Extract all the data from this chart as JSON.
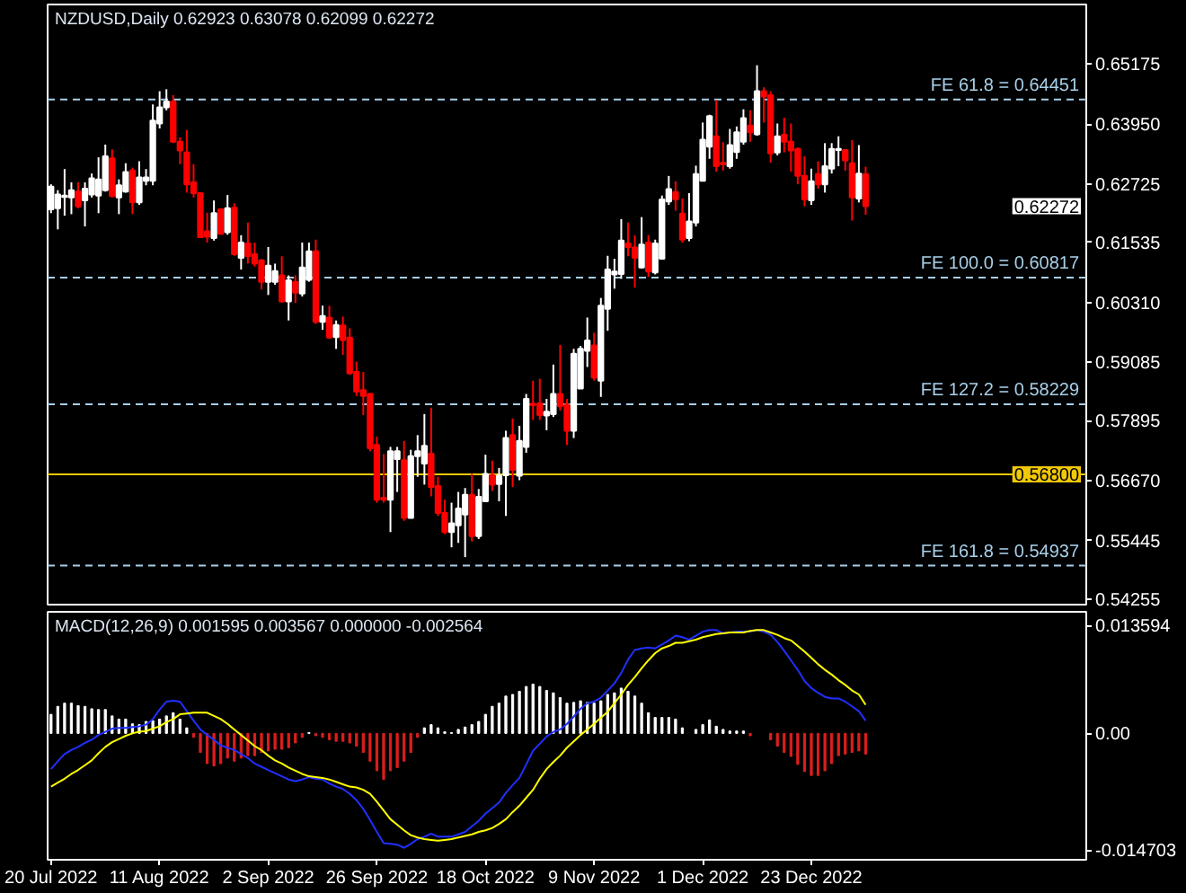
{
  "chart_data": [
    {
      "type": "candlestick",
      "title": "NZDUSD,Daily 0.62923 0.63078 0.62099 0.62272",
      "tick_labels": "y",
      "categories": [
        null,
        null,
        null,
        null,
        null,
        null,
        null,
        null,
        null,
        null,
        null,
        null,
        null,
        null,
        null,
        null,
        null,
        null,
        null,
        null,
        null,
        null,
        null,
        null,
        null,
        null,
        null,
        null,
        null,
        null,
        null,
        null,
        null,
        null,
        null,
        null,
        null,
        null,
        null,
        null,
        null,
        null,
        null,
        null,
        null,
        null,
        null,
        null,
        null,
        null,
        null,
        null,
        null,
        null,
        null,
        null,
        null,
        null,
        null,
        null,
        null,
        null,
        null,
        null,
        null,
        null,
        null,
        null,
        null,
        null,
        null,
        null,
        null,
        null,
        null,
        null,
        null,
        null,
        null,
        null,
        null,
        null,
        null,
        null,
        null,
        null,
        null,
        null,
        null,
        null,
        null,
        null,
        null,
        null,
        null,
        null,
        null,
        null,
        null,
        null,
        null,
        null,
        null,
        null,
        null,
        null,
        null,
        null,
        null,
        null,
        null,
        null,
        null,
        null,
        null,
        null,
        null,
        null,
        null,
        null,
        null,
        null,
        null,
        null,
        null,
        null,
        null,
        null,
        null,
        null,
        null,
        null,
        null,
        null,
        null,
        null,
        null,
        null,
        null,
        null,
        null,
        null,
        null,
        null,
        null,
        null,
        null,
        null,
        null,
        null,
        null,
        null,
        null
      ],
      "ohlc": [
        [
          0.6221,
          0.6272,
          0.6213,
          0.6267
        ],
        [
          0.6223,
          0.626,
          0.618,
          0.6251
        ],
        [
          0.6246,
          0.6303,
          0.6208,
          0.6249
        ],
        [
          0.6245,
          0.6276,
          0.6211,
          0.626
        ],
        [
          0.6257,
          0.6276,
          0.6223,
          0.6227
        ],
        [
          0.6239,
          0.6276,
          0.6186,
          0.6263
        ],
        [
          0.6251,
          0.6294,
          0.6245,
          0.6284
        ],
        [
          0.6249,
          0.6327,
          0.6213,
          0.6282
        ],
        [
          0.626,
          0.6353,
          0.6257,
          0.6329
        ],
        [
          0.6325,
          0.6343,
          0.6245,
          0.6248
        ],
        [
          0.6245,
          0.6282,
          0.6211,
          0.627
        ],
        [
          0.6257,
          0.6315,
          0.6255,
          0.6297
        ],
        [
          0.63,
          0.6306,
          0.6211,
          0.6235
        ],
        [
          0.6235,
          0.6319,
          0.623,
          0.6286
        ],
        [
          0.6279,
          0.6303,
          0.627,
          0.6286
        ],
        [
          0.6279,
          0.6435,
          0.627,
          0.6402
        ],
        [
          0.6396,
          0.6462,
          0.6386,
          0.6429
        ],
        [
          0.6429,
          0.6466,
          0.6423,
          0.6441
        ],
        [
          0.6441,
          0.6454,
          0.6356,
          0.6359
        ],
        [
          0.6359,
          0.6368,
          0.6313,
          0.6341
        ],
        [
          0.6337,
          0.6383,
          0.6255,
          0.6272
        ],
        [
          0.6276,
          0.6313,
          0.6245,
          0.6254
        ],
        [
          0.6254,
          0.6255,
          0.6162,
          0.6164
        ],
        [
          0.6176,
          0.6214,
          0.6153,
          0.6165
        ],
        [
          0.6162,
          0.6239,
          0.6157,
          0.6213
        ],
        [
          0.6221,
          0.6223,
          0.6169,
          0.6171
        ],
        [
          0.6174,
          0.625,
          0.6169,
          0.6223
        ],
        [
          0.6224,
          0.6233,
          0.6126,
          0.6129
        ],
        [
          0.6122,
          0.6168,
          0.6098,
          0.6153
        ],
        [
          0.6151,
          0.6194,
          0.611,
          0.6125
        ],
        [
          0.6129,
          0.6153,
          0.6104,
          0.611
        ],
        [
          0.6117,
          0.6119,
          0.6057,
          0.6073
        ],
        [
          0.6073,
          0.6144,
          0.6046,
          0.6106
        ],
        [
          0.6073,
          0.611,
          0.6067,
          0.6095
        ],
        [
          0.6086,
          0.6125,
          0.603,
          0.6033
        ],
        [
          0.6033,
          0.6086,
          0.5994,
          0.6076
        ],
        [
          0.6073,
          0.6086,
          0.603,
          0.6051
        ],
        [
          0.6049,
          0.6153,
          0.6043,
          0.6102
        ],
        [
          0.6077,
          0.6153,
          0.6073,
          0.6135
        ],
        [
          0.6135,
          0.6159,
          0.5987,
          0.5991
        ],
        [
          0.5991,
          0.6024,
          0.5975,
          0.6003
        ],
        [
          0.6,
          0.6024,
          0.5957,
          0.5959
        ],
        [
          0.596,
          0.5994,
          0.5936,
          0.5985
        ],
        [
          0.5984,
          0.6002,
          0.5924,
          0.5954
        ],
        [
          0.5959,
          0.5978,
          0.5883,
          0.5886
        ],
        [
          0.5889,
          0.591,
          0.584,
          0.5849
        ],
        [
          0.5852,
          0.5889,
          0.5801,
          0.584
        ],
        [
          0.5844,
          0.5846,
          0.5727,
          0.5733
        ],
        [
          0.574,
          0.5757,
          0.5622,
          0.5628
        ],
        [
          0.5632,
          0.5721,
          0.5622,
          0.5628
        ],
        [
          0.5628,
          0.5736,
          0.5562,
          0.5727
        ],
        [
          0.5711,
          0.5736,
          0.5644,
          0.5727
        ],
        [
          0.5709,
          0.5748,
          0.5585,
          0.5591
        ],
        [
          0.5591,
          0.573,
          0.5591,
          0.5717
        ],
        [
          0.5717,
          0.576,
          0.5675,
          0.5727
        ],
        [
          0.5702,
          0.5803,
          0.5659,
          0.5738
        ],
        [
          0.5722,
          0.5816,
          0.5635,
          0.5654
        ],
        [
          0.5656,
          0.5675,
          0.5595,
          0.5601
        ],
        [
          0.5601,
          0.5628,
          0.5558,
          0.5562
        ],
        [
          0.5562,
          0.5622,
          0.5531,
          0.558
        ],
        [
          0.5576,
          0.5644,
          0.554,
          0.561
        ],
        [
          0.5598,
          0.5652,
          0.5511,
          0.5638
        ],
        [
          0.5638,
          0.5681,
          0.5543,
          0.5554
        ],
        [
          0.5554,
          0.565,
          0.5548,
          0.5634
        ],
        [
          0.5625,
          0.572,
          0.5625,
          0.5681
        ],
        [
          0.5678,
          0.5708,
          0.5646,
          0.5659
        ],
        [
          0.566,
          0.5693,
          0.5625,
          0.5677
        ],
        [
          0.5678,
          0.5769,
          0.5595,
          0.5754
        ],
        [
          0.576,
          0.5794,
          0.5654,
          0.5689
        ],
        [
          0.5677,
          0.5779,
          0.5668,
          0.5748
        ],
        [
          0.5736,
          0.5844,
          0.5724,
          0.5834
        ],
        [
          0.5824,
          0.5871,
          0.5791,
          0.5821
        ],
        [
          0.5825,
          0.5875,
          0.5791,
          0.5801
        ],
        [
          0.58,
          0.5834,
          0.577,
          0.5808
        ],
        [
          0.5803,
          0.5904,
          0.5797,
          0.5844
        ],
        [
          0.5844,
          0.5944,
          0.581,
          0.5819
        ],
        [
          0.5822,
          0.5834,
          0.574,
          0.5769
        ],
        [
          0.5769,
          0.5936,
          0.5754,
          0.5926
        ],
        [
          0.5855,
          0.5942,
          0.5855,
          0.5936
        ],
        [
          0.5932,
          0.6,
          0.5899,
          0.5953
        ],
        [
          0.5943,
          0.5969,
          0.5871,
          0.5877
        ],
        [
          0.5871,
          0.604,
          0.5838,
          0.6024
        ],
        [
          0.6018,
          0.6126,
          0.5973,
          0.6098
        ],
        [
          0.6088,
          0.612,
          0.6059,
          0.6094
        ],
        [
          0.6089,
          0.6201,
          0.6079,
          0.6157
        ],
        [
          0.6151,
          0.6194,
          0.6125,
          0.6144
        ],
        [
          0.6143,
          0.6168,
          0.6061,
          0.6122
        ],
        [
          0.6102,
          0.6205,
          0.61,
          0.6149
        ],
        [
          0.6153,
          0.6168,
          0.6083,
          0.6094
        ],
        [
          0.6092,
          0.6159,
          0.6088,
          0.6151
        ],
        [
          0.612,
          0.6249,
          0.612,
          0.6241
        ],
        [
          0.6237,
          0.6289,
          0.623,
          0.6262
        ],
        [
          0.6256,
          0.6278,
          0.6218,
          0.6241
        ],
        [
          0.6212,
          0.6243,
          0.6153,
          0.6159
        ],
        [
          0.6162,
          0.6254,
          0.6156,
          0.6196
        ],
        [
          0.6194,
          0.631,
          0.6186,
          0.6293
        ],
        [
          0.6279,
          0.6398,
          0.6279,
          0.6363
        ],
        [
          0.6349,
          0.6414,
          0.6324,
          0.6411
        ],
        [
          0.637,
          0.6444,
          0.6298,
          0.6309
        ],
        [
          0.6316,
          0.6358,
          0.63,
          0.6313
        ],
        [
          0.6309,
          0.6385,
          0.6304,
          0.6352
        ],
        [
          0.6338,
          0.639,
          0.6324,
          0.6378
        ],
        [
          0.6359,
          0.6425,
          0.6353,
          0.6407
        ],
        [
          0.6392,
          0.6423,
          0.6359,
          0.6378
        ],
        [
          0.6374,
          0.6515,
          0.6371,
          0.6462
        ],
        [
          0.6462,
          0.647,
          0.6398,
          0.6451
        ],
        [
          0.6454,
          0.6462,
          0.6316,
          0.6335
        ],
        [
          0.6337,
          0.6396,
          0.6331,
          0.637
        ],
        [
          0.6373,
          0.6408,
          0.6337,
          0.6359
        ],
        [
          0.6359,
          0.6396,
          0.6298,
          0.6341
        ],
        [
          0.6344,
          0.6347,
          0.6272,
          0.6289
        ],
        [
          0.6289,
          0.6329,
          0.6227,
          0.6241
        ],
        [
          0.6239,
          0.6304,
          0.623,
          0.6278
        ],
        [
          0.6293,
          0.6319,
          0.6263,
          0.6272
        ],
        [
          0.6272,
          0.6356,
          0.6255,
          0.6309
        ],
        [
          0.6304,
          0.6356,
          0.6294,
          0.6344
        ],
        [
          0.6342,
          0.637,
          0.6309,
          0.6344
        ],
        [
          0.6342,
          0.6343,
          0.63,
          0.6321
        ],
        [
          0.6315,
          0.6362,
          0.6198,
          0.6245
        ],
        [
          0.6243,
          0.6352,
          0.6235,
          0.6294
        ],
        [
          0.62923,
          0.63078,
          0.62099,
          0.62272
        ],
        null,
        null,
        null,
        null,
        null,
        null,
        null,
        null,
        null,
        null,
        null,
        null,
        null,
        null,
        null,
        null,
        null,
        null,
        null,
        null,
        null,
        null,
        null,
        null,
        null,
        null,
        null,
        null,
        null,
        null,
        null,
        null
      ],
      "colors": [
        "#ffffff",
        "#ffffff",
        "#ffffff",
        "#ffffff",
        "#ff0000",
        "#ffffff",
        "#ffffff",
        "#ffffff",
        "#ffffff",
        "#ff0000",
        "#ffffff",
        "#ffffff",
        "#ff0000",
        "#ffffff",
        "#ffffff",
        "#ffffff",
        "#ffffff",
        "#ffffff",
        "#ff0000",
        "#ff0000",
        "#ff0000",
        "#ff0000",
        "#ff0000",
        "#ff0000",
        "#ffffff",
        "#ff0000",
        "#ffffff",
        "#ff0000",
        "#ffffff",
        "#ff0000",
        "#ff0000",
        "#ff0000",
        "#ffffff",
        "#ffffff",
        "#ff0000",
        "#ffffff",
        "#ff0000",
        "#ffffff",
        "#ffffff",
        "#ff0000",
        "#ffffff",
        "#ff0000",
        "#ffffff",
        "#ff0000",
        "#ff0000",
        "#ff0000",
        "#ff0000",
        "#ff0000",
        "#ff0000",
        "#ff0000",
        "#ffffff",
        "#ffffff",
        "#ff0000",
        "#ffffff",
        "#ffffff",
        "#ffffff",
        "#ff0000",
        "#ff0000",
        "#ff0000",
        "#ffffff",
        "#ffffff",
        "#ffffff",
        "#ff0000",
        "#ffffff",
        "#ffffff",
        "#ff0000",
        "#ffffff",
        "#ffffff",
        "#ff0000",
        "#ffffff",
        "#ffffff",
        "#ff0000",
        "#ff0000",
        "#ffffff",
        "#ffffff",
        "#ff0000",
        "#ff0000",
        "#ffffff",
        "#ffffff",
        "#ffffff",
        "#ff0000",
        "#ffffff",
        "#ffffff",
        "#ffffff",
        "#ffffff",
        "#ff0000",
        "#ff0000",
        "#ffffff",
        "#ff0000",
        "#ffffff",
        "#ffffff",
        "#ffffff",
        "#ff0000",
        "#ff0000",
        "#ffffff",
        "#ffffff",
        "#ffffff",
        "#ffffff",
        "#ff0000",
        "#ff0000",
        "#ffffff",
        "#ffffff",
        "#ffffff",
        "#ff0000",
        "#ffffff",
        "#ff0000",
        "#ff0000",
        "#ffffff",
        "#ff0000",
        "#ff0000",
        "#ff0000",
        "#ff0000",
        "#ffffff",
        "#ff0000",
        "#ffffff",
        "#ffffff",
        "#ffffff",
        "#ff0000",
        "#ff0000",
        "#ffffff",
        "#ff0000",
        null,
        null,
        null,
        null,
        null,
        null,
        null,
        null,
        null,
        null,
        null,
        null,
        null,
        null,
        null,
        null,
        null,
        null,
        null,
        null,
        null,
        null,
        null,
        null,
        null,
        null,
        null,
        null,
        null,
        null,
        null,
        null
      ],
      "ylim": [
        0.5414,
        0.6639
      ],
      "yticks": [
        0.65175,
        {
          "value": 0.6395,
          "label": "0.63950"
        },
        0.62725,
        0.61535,
        {
          "value": 0.6031,
          "label": "0.60310"
        },
        0.59085,
        0.57895,
        {
          "value": 0.5667,
          "label": "0.56670"
        },
        0.55445,
        0.54255
      ],
      "ref_lines": [
        {
          "axis": "y",
          "value": 0.64451,
          "label": "FE 61.8 = 0.64451",
          "color": "#a8cfe8",
          "line_style": "dashed"
        },
        {
          "axis": "y",
          "value": 0.60817,
          "label": "FE 100.0 = 0.60817",
          "color": "#a8cfe8",
          "line_style": "dashed"
        },
        {
          "axis": "y",
          "value": 0.58229,
          "label": "FE 127.2 = 0.58229",
          "color": "#a8cfe8",
          "line_style": "dashed"
        },
        {
          "axis": "y",
          "value": 0.54937,
          "label": "FE 161.8 = 0.54937",
          "color": "#a8cfe8",
          "line_style": "dashed"
        },
        {
          "axis": "y",
          "value": 0.568,
          "label": "0.56800",
          "color": "#f0c808"
        }
      ],
      "annotations": [
        "0.62272"
      ]
    },
    {
      "type": "bar",
      "title": "MACD(12,26,9) 0.001595 0.003567 0.000000 -0.002564",
      "categories": [
        "20 Jul 2022",
        null,
        null,
        null,
        null,
        null,
        null,
        null,
        null,
        null,
        null,
        null,
        null,
        null,
        null,
        null,
        "11 Aug 2022",
        null,
        null,
        null,
        null,
        null,
        null,
        null,
        null,
        null,
        null,
        null,
        null,
        null,
        null,
        null,
        "2 Sep 2022",
        null,
        null,
        null,
        null,
        null,
        null,
        null,
        null,
        null,
        null,
        null,
        null,
        null,
        null,
        null,
        "26 Sep 2022",
        null,
        null,
        null,
        null,
        null,
        null,
        null,
        null,
        null,
        null,
        null,
        null,
        null,
        null,
        null,
        "18 Oct 2022",
        null,
        null,
        null,
        null,
        null,
        null,
        null,
        null,
        null,
        null,
        null,
        null,
        null,
        null,
        null,
        "9 Nov 2022",
        null,
        null,
        null,
        null,
        null,
        null,
        null,
        null,
        null,
        null,
        null,
        null,
        null,
        null,
        null,
        "1 Dec 2022",
        null,
        null,
        null,
        null,
        null,
        null,
        null,
        null,
        null,
        null,
        null,
        null,
        null,
        null,
        null,
        "23 Dec 2022",
        null,
        null,
        null,
        null,
        null,
        null,
        null,
        null,
        null,
        null,
        null,
        null,
        null,
        null,
        null,
        null,
        null,
        null,
        null,
        null,
        null,
        null,
        null,
        null,
        null,
        null,
        null,
        null,
        null,
        null,
        null,
        null,
        null,
        null,
        null,
        null,
        null,
        null,
        null,
        null
      ],
      "ylim": [
        -0.0159,
        0.0153
      ],
      "yticks": [
        0.013594,
        {
          "value": 0,
          "label": "0.00"
        },
        -0.014703
      ],
      "series": [
        {
          "type": "bar",
          "values": [
            0.0024,
            0.0034,
            0.0038,
            0.0038,
            0.0035,
            0.0034,
            0.0031,
            0.003,
            0.003,
            0.0022,
            0.0018,
            0.0018,
            0.0012,
            0.0011,
            0.0015,
            0.0016,
            0.0018,
            0.0022,
            0.0026,
            0.0018,
            0.0007,
            -0.0005,
            -0.0024,
            -0.0038,
            -0.0041,
            -0.0038,
            -0.0031,
            -0.0035,
            -0.0031,
            -0.0028,
            -0.0028,
            -0.0024,
            -0.0022,
            -0.002,
            -0.002,
            -0.0018,
            -0.0012,
            -0.0005,
            0.0001,
            -0.0003,
            -0.0005,
            -0.0008,
            -0.001,
            -0.001,
            -0.0012,
            -0.0016,
            -0.0024,
            -0.0035,
            -0.0047,
            -0.0058,
            -0.0047,
            -0.0043,
            -0.0035,
            -0.0024,
            -0.0005,
            0.0007,
            0.0011,
            0.0007,
            0.0002,
            0.0001,
            0.0005,
            0.0008,
            0.0011,
            0.0015,
            0.0024,
            0.0034,
            0.0038,
            0.0047,
            0.0049,
            0.0053,
            0.0059,
            0.0062,
            0.0059,
            0.0054,
            0.0051,
            0.0045,
            0.0038,
            0.0039,
            0.0041,
            0.0039,
            0.0038,
            0.0041,
            0.0049,
            0.0051,
            0.0057,
            0.0053,
            0.0047,
            0.0038,
            0.0026,
            0.002,
            0.002,
            0.002,
            0.0018,
            0.0007,
            null,
            0.0005,
            0.0011,
            0.0017,
            0.0009,
            0.0005,
            0.0003,
            0.0003,
            0.0003,
            -0.0003,
            null,
            null,
            -0.0008,
            -0.0016,
            -0.0024,
            -0.0029,
            -0.0039,
            -0.0048,
            -0.0053,
            -0.0053,
            -0.0047,
            -0.0038,
            -0.0028,
            -0.0026,
            -0.0024,
            -0.0022,
            -0.0026,
            null,
            null,
            null,
            null,
            null,
            null,
            null,
            null,
            null,
            null,
            null,
            null,
            null,
            null,
            null,
            null,
            null,
            null,
            null,
            null,
            null,
            null,
            null,
            null,
            null,
            null,
            null,
            null,
            null,
            null,
            null,
            null
          ],
          "colors": [
            "#ffffff",
            "#ffffff",
            "#ffffff",
            "#ffffff",
            "#ffffff",
            "#ffffff",
            "#ffffff",
            "#ffffff",
            "#ffffff",
            "#ffffff",
            "#ffffff",
            "#ffffff",
            "#ffffff",
            "#ffffff",
            "#ffffff",
            "#ffffff",
            "#ffffff",
            "#ffffff",
            "#ffffff",
            "#ffffff",
            "#ffffff",
            "#dc1e1e",
            "#dc1e1e",
            "#dc1e1e",
            "#dc1e1e",
            "#dc1e1e",
            "#dc1e1e",
            "#dc1e1e",
            "#dc1e1e",
            "#dc1e1e",
            "#dc1e1e",
            "#dc1e1e",
            "#dc1e1e",
            "#dc1e1e",
            "#dc1e1e",
            "#dc1e1e",
            "#dc1e1e",
            "#dc1e1e",
            "#ffffff",
            "#dc1e1e",
            "#dc1e1e",
            "#dc1e1e",
            "#dc1e1e",
            "#dc1e1e",
            "#dc1e1e",
            "#dc1e1e",
            "#dc1e1e",
            "#dc1e1e",
            "#dc1e1e",
            "#dc1e1e",
            "#dc1e1e",
            "#dc1e1e",
            "#dc1e1e",
            "#dc1e1e",
            "#dc1e1e",
            "#ffffff",
            "#ffffff",
            "#ffffff",
            "#ffffff",
            "#ffffff",
            "#ffffff",
            "#ffffff",
            "#ffffff",
            "#ffffff",
            "#ffffff",
            "#ffffff",
            "#ffffff",
            "#ffffff",
            "#ffffff",
            "#ffffff",
            "#ffffff",
            "#ffffff",
            "#ffffff",
            "#ffffff",
            "#ffffff",
            "#ffffff",
            "#ffffff",
            "#ffffff",
            "#ffffff",
            "#ffffff",
            "#ffffff",
            "#ffffff",
            "#ffffff",
            "#ffffff",
            "#ffffff",
            "#ffffff",
            "#ffffff",
            "#ffffff",
            "#ffffff",
            "#ffffff",
            "#ffffff",
            "#ffffff",
            "#ffffff",
            "#ffffff",
            null,
            "#ffffff",
            "#ffffff",
            "#ffffff",
            "#ffffff",
            "#ffffff",
            "#ffffff",
            "#ffffff",
            "#ffffff",
            "#dc1e1e",
            null,
            null,
            "#dc1e1e",
            "#dc1e1e",
            "#dc1e1e",
            "#dc1e1e",
            "#dc1e1e",
            "#dc1e1e",
            "#dc1e1e",
            "#dc1e1e",
            "#dc1e1e",
            "#dc1e1e",
            "#dc1e1e",
            "#dc1e1e",
            "#dc1e1e",
            "#dc1e1e",
            "#dc1e1e",
            null,
            null,
            null,
            null,
            null,
            null,
            null,
            null,
            null,
            null,
            null,
            null,
            null,
            null,
            null,
            null,
            null,
            null,
            null,
            null,
            null,
            null,
            null,
            null,
            null,
            null,
            null,
            null,
            null,
            null,
            null,
            null
          ]
        },
        {
          "type": "line",
          "color": "#2030ff",
          "values": [
            -0.0045,
            -0.0035,
            -0.0026,
            -0.0021,
            -0.0017,
            -0.0012,
            -0.0008,
            -0.0002,
            0.0002,
            0.0006,
            0.0007,
            0.0007,
            0.0008,
            0.0009,
            0.0011,
            0.0018,
            0.003,
            0.004,
            0.0041,
            0.004,
            0.0028,
            0.0016,
            0.0005,
            -0.0002,
            -0.0008,
            -0.0015,
            -0.0018,
            -0.0021,
            -0.0026,
            -0.0031,
            -0.0038,
            -0.0042,
            -0.0046,
            -0.005,
            -0.0054,
            -0.0058,
            -0.006,
            -0.0058,
            -0.0055,
            -0.0057,
            -0.0058,
            -0.0063,
            -0.0067,
            -0.007,
            -0.0076,
            -0.0084,
            -0.0095,
            -0.0109,
            -0.0124,
            -0.0138,
            -0.0139,
            -0.014,
            -0.0144,
            -0.0139,
            -0.0133,
            -0.013,
            -0.0126,
            -0.013,
            -0.013,
            -0.013,
            -0.0127,
            -0.0124,
            -0.0117,
            -0.011,
            -0.0101,
            -0.0094,
            -0.0087,
            -0.0075,
            -0.0065,
            -0.0056,
            -0.0039,
            -0.0022,
            -0.0013,
            -0.0004,
            0.0002,
            0.0005,
            0.0012,
            0.0021,
            0.0031,
            0.0038,
            0.004,
            0.0045,
            0.0054,
            0.0063,
            0.0076,
            0.0093,
            0.0105,
            0.0107,
            0.0108,
            0.0107,
            0.0112,
            0.0117,
            0.0123,
            0.0121,
            0.0118,
            0.0123,
            0.0128,
            0.013,
            0.013,
            0.0126,
            0.0127,
            0.0128,
            0.0128,
            0.0128,
            0.013,
            0.0128,
            0.0124,
            0.0115,
            0.0104,
            0.0092,
            0.008,
            0.0066,
            0.0057,
            0.0051,
            0.0046,
            0.0044,
            0.0044,
            0.004,
            0.0034,
            0.0028,
            0.0016,
            null,
            null,
            null,
            null,
            null,
            null,
            null,
            null,
            null,
            null,
            null,
            null,
            null,
            null,
            null,
            null,
            null,
            null,
            null,
            null,
            null,
            null,
            null,
            null,
            null,
            null,
            null,
            null,
            null,
            null,
            null,
            null
          ]
        },
        {
          "type": "line",
          "color": "#ffff00",
          "values": [
            -0.0067,
            -0.0062,
            -0.0057,
            -0.0051,
            -0.0046,
            -0.004,
            -0.0034,
            -0.0025,
            -0.0017,
            -0.0011,
            -0.0007,
            -0.0003,
            0.0,
            0.0002,
            0.0003,
            0.0006,
            0.0009,
            0.0014,
            0.0018,
            0.0024,
            0.0025,
            0.0026,
            0.0026,
            0.0026,
            0.0022,
            0.0018,
            0.0012,
            0.0005,
            -0.0002,
            -0.0009,
            -0.0016,
            -0.0021,
            -0.0028,
            -0.0034,
            -0.0038,
            -0.0043,
            -0.0047,
            -0.0051,
            -0.0054,
            -0.0055,
            -0.0056,
            -0.0058,
            -0.0061,
            -0.0064,
            -0.0067,
            -0.0068,
            -0.0071,
            -0.0076,
            -0.0086,
            -0.0097,
            -0.0108,
            -0.0115,
            -0.0122,
            -0.0128,
            -0.0131,
            -0.0133,
            -0.0134,
            -0.0135,
            -0.0134,
            -0.0133,
            -0.0131,
            -0.0129,
            -0.0127,
            -0.0124,
            -0.0122,
            -0.0119,
            -0.0114,
            -0.0108,
            -0.0099,
            -0.0091,
            -0.0081,
            -0.0071,
            -0.0057,
            -0.0045,
            -0.0036,
            -0.0028,
            -0.0018,
            -0.001,
            -0.0002,
            0.0005,
            0.0012,
            0.002,
            0.0027,
            0.0038,
            0.0049,
            0.0061,
            0.0071,
            0.0082,
            0.0092,
            0.0101,
            0.0107,
            0.011,
            0.0114,
            0.0114,
            0.0116,
            0.0118,
            0.0121,
            0.0123,
            0.0125,
            0.0126,
            0.0127,
            0.0127,
            0.0127,
            0.0129,
            0.013,
            0.013,
            0.0127,
            0.0124,
            0.012,
            0.0117,
            0.011,
            0.0103,
            0.0095,
            0.0087,
            0.008,
            0.0074,
            0.0067,
            0.0061,
            0.0054,
            0.0049,
            0.0036,
            null,
            null,
            null,
            null,
            null,
            null,
            null,
            null,
            null,
            null,
            null,
            null,
            null,
            null,
            null,
            null,
            null,
            null,
            null,
            null,
            null,
            null,
            null,
            null,
            null,
            null,
            null,
            null,
            null,
            null,
            null,
            null
          ]
        }
      ]
    }
  ]
}
